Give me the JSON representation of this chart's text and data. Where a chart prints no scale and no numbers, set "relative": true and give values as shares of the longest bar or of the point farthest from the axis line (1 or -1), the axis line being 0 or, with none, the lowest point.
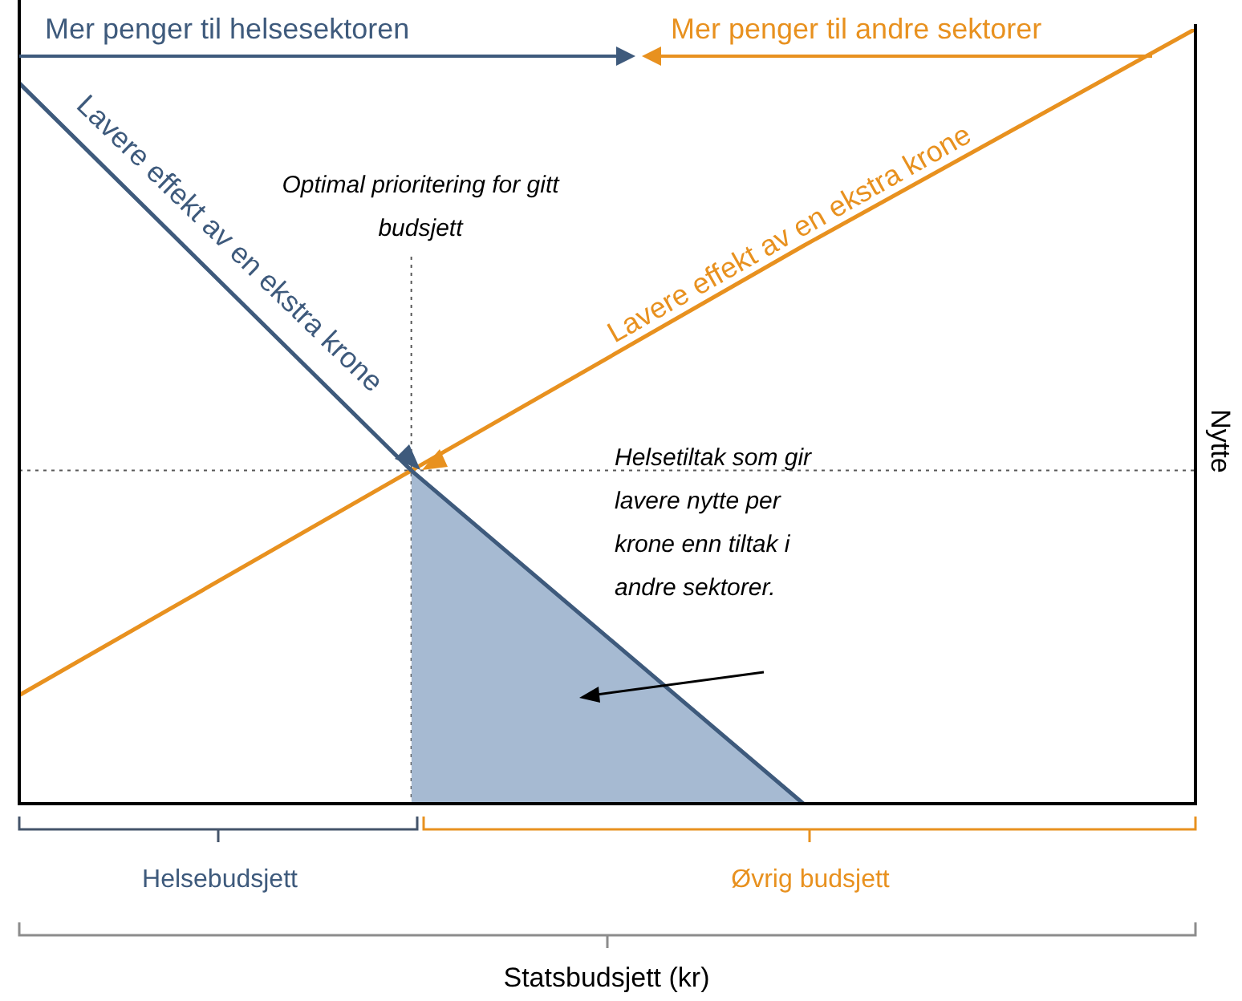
{
  "chart_data": {
    "type": "line",
    "relative": true,
    "ylabel": "Nytte",
    "categories": [
      null,
      null,
      null,
      null
    ],
    "series": [
      {
        "type": "area",
        "color": "#a6bad2",
        "values": [
          null,
          0.43,
          0,
          null
        ]
      },
      {
        "color": "#3e5a7c",
        "values": [
          0.93,
          0.43,
          0,
          null
        ]
      },
      {
        "color": "#e8911f",
        "values": [
          0.14,
          0.43,
          0.72,
          1
        ]
      }
    ],
    "ref_lines": [
      {
        "axis": "y",
        "value": 0.43,
        "line_style": "dotted",
        "color": "#595959"
      }
    ],
    "annotations": [
      "Mer penger til helsesektoren",
      "Mer penger til andre sektorer",
      "Lavere effekt av en ekstra krone",
      "Lavere effekt av en ekstra krone",
      "Optimal prioritering for gitt budsjett",
      "Helsetiltak som gir lavere nytte per krone enn tiltak i andre sektorer.",
      "Helsebudsjett",
      "Øvrig budsjett",
      "Statsbudsjett (kr)"
    ],
    "legend": false,
    "marker": "none"
  }
}
